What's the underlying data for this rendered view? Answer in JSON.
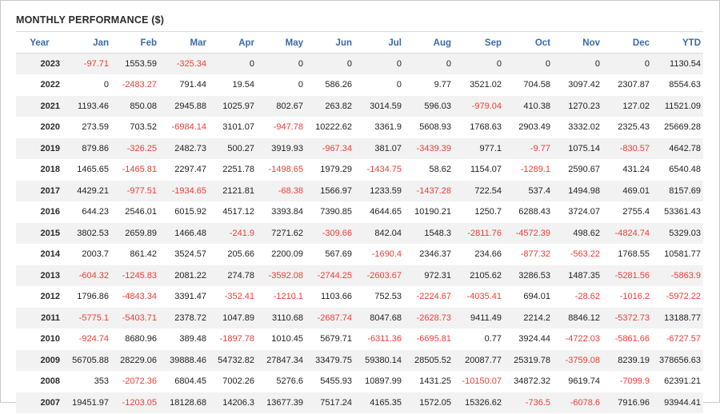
{
  "title": "MONTHLY PERFORMANCE ($)",
  "colors": {
    "header_text": "#3a6aa3",
    "negative": "#e8403a",
    "row_stripe": "#f2f2f2"
  },
  "columns": [
    "Year",
    "Jan",
    "Feb",
    "Mar",
    "Apr",
    "May",
    "Jun",
    "Jul",
    "Aug",
    "Sep",
    "Oct",
    "Nov",
    "Dec",
    "YTD"
  ],
  "rows": [
    {
      "year": "2023",
      "values": [
        "-97.71",
        "1553.59",
        "-325.34",
        "0",
        "0",
        "0",
        "0",
        "0",
        "0",
        "0",
        "0",
        "0",
        "1130.54"
      ]
    },
    {
      "year": "2022",
      "values": [
        "0",
        "-2483.27",
        "791.44",
        "19.54",
        "0",
        "586.26",
        "0",
        "9.77",
        "3521.02",
        "704.58",
        "3097.42",
        "2307.87",
        "8554.63"
      ]
    },
    {
      "year": "2021",
      "values": [
        "1193.46",
        "850.08",
        "2945.88",
        "1025.97",
        "802.67",
        "263.82",
        "3014.59",
        "596.03",
        "-979.04",
        "410.38",
        "1270.23",
        "127.02",
        "11521.09"
      ]
    },
    {
      "year": "2020",
      "values": [
        "273.59",
        "703.52",
        "-6984.14",
        "3101.07",
        "-947.78",
        "10222.62",
        "3361.9",
        "5608.93",
        "1768.63",
        "2903.49",
        "3332.02",
        "2325.43",
        "25669.28"
      ]
    },
    {
      "year": "2019",
      "values": [
        "879.86",
        "-326.25",
        "2482.73",
        "500.27",
        "3919.93",
        "-967.34",
        "381.07",
        "-3439.39",
        "977.1",
        "-9.77",
        "1075.14",
        "-830.57",
        "4642.78"
      ]
    },
    {
      "year": "2018",
      "values": [
        "1465.65",
        "-1465.81",
        "2297.47",
        "2251.78",
        "-1498.65",
        "1979.29",
        "-1434.75",
        "58.62",
        "1154.07",
        "-1289.1",
        "2590.67",
        "431.24",
        "6540.48"
      ]
    },
    {
      "year": "2017",
      "values": [
        "4429.21",
        "-977.51",
        "-1934.65",
        "2121.81",
        "-68.38",
        "1566.97",
        "1233.59",
        "-1437.28",
        "722.54",
        "537.4",
        "1494.98",
        "469.01",
        "8157.69"
      ]
    },
    {
      "year": "2016",
      "values": [
        "644.23",
        "2546.01",
        "6015.92",
        "4517.12",
        "3393.84",
        "7390.85",
        "4644.65",
        "10190.21",
        "1250.7",
        "6288.43",
        "3724.07",
        "2755.4",
        "53361.43"
      ]
    },
    {
      "year": "2015",
      "values": [
        "3802.53",
        "2659.89",
        "1466.48",
        "-241.9",
        "7271.62",
        "-309.66",
        "842.04",
        "1548.3",
        "-2811.76",
        "-4572.39",
        "498.62",
        "-4824.74",
        "5329.03"
      ]
    },
    {
      "year": "2014",
      "values": [
        "2003.7",
        "861.42",
        "3524.57",
        "205.66",
        "2200.09",
        "567.69",
        "-1690.4",
        "2346.37",
        "234.66",
        "-877.32",
        "-563.22",
        "1768.55",
        "10581.77"
      ]
    },
    {
      "year": "2013",
      "values": [
        "-604.32",
        "-1245.83",
        "2081.22",
        "274.78",
        "-3592.08",
        "-2744.25",
        "-2603.67",
        "972.31",
        "2105.62",
        "3286.53",
        "1487.35",
        "-5281.56",
        "-5863.9"
      ]
    },
    {
      "year": "2012",
      "values": [
        "1796.86",
        "-4843.34",
        "3391.47",
        "-352.41",
        "-1210.1",
        "1103.66",
        "752.53",
        "-2224.67",
        "-4035.41",
        "694.01",
        "-28.62",
        "-1016.2",
        "-5972.22"
      ]
    },
    {
      "year": "2011",
      "values": [
        "-5775.1",
        "-5403.71",
        "2378.72",
        "1047.89",
        "3110.68",
        "-2687.74",
        "8047.68",
        "-2628.73",
        "9411.49",
        "2214.2",
        "8846.12",
        "-5372.73",
        "13188.77"
      ]
    },
    {
      "year": "2010",
      "values": [
        "-924.74",
        "8680.96",
        "389.48",
        "-1897.78",
        "1010.45",
        "5679.71",
        "-6311.36",
        "-6695.81",
        "0.77",
        "3924.44",
        "-4722.03",
        "-5861.66",
        "-6727.57"
      ]
    },
    {
      "year": "2009",
      "values": [
        "56705.88",
        "28229.06",
        "39888.46",
        "54732.82",
        "27847.34",
        "33479.75",
        "59380.14",
        "28505.52",
        "20087.77",
        "25319.78",
        "-3759.08",
        "8239.19",
        "378656.63"
      ]
    },
    {
      "year": "2008",
      "values": [
        "353",
        "-2072.36",
        "6804.45",
        "7002.26",
        "5276.6",
        "5455.93",
        "10897.99",
        "1431.25",
        "-10150.07",
        "34872.32",
        "9619.74",
        "-7099.9",
        "62391.21"
      ]
    },
    {
      "year": "2007",
      "values": [
        "19451.97",
        "-1203.05",
        "18128.68",
        "14206.3",
        "13677.39",
        "7517.24",
        "4165.35",
        "1572.05",
        "15326.62",
        "-736.5",
        "-6078.6",
        "7916.96",
        "93944.41"
      ]
    }
  ]
}
